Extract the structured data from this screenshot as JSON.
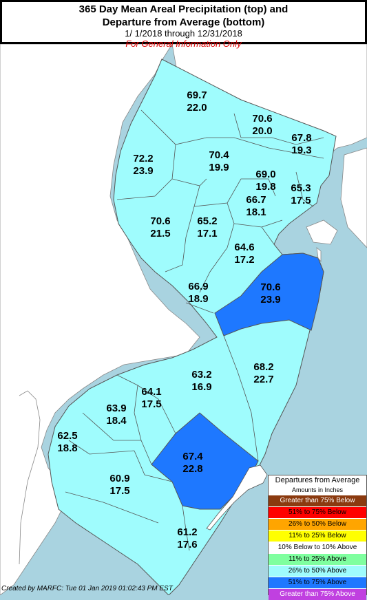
{
  "title": {
    "line1": "365 Day Mean Areal Precipitation (top) and",
    "line2": "Departure from Average (bottom)",
    "dates": "1/ 1/2018 through 12/31/2018",
    "disclaimer": "For General Information Only"
  },
  "regions": [
    {
      "top": "69.7",
      "bottom": "22.0",
      "category": "26% to 50% Above"
    },
    {
      "top": "70.6",
      "bottom": "20.0",
      "category": "26% to 50% Above"
    },
    {
      "top": "67.8",
      "bottom": "19.3",
      "category": "26% to 50% Above"
    },
    {
      "top": "72.2",
      "bottom": "23.9",
      "category": "26% to 50% Above"
    },
    {
      "top": "70.4",
      "bottom": "19.9",
      "category": "26% to 50% Above"
    },
    {
      "top": "69.0",
      "bottom": "19.8",
      "category": "26% to 50% Above"
    },
    {
      "top": "65.3",
      "bottom": "17.5",
      "category": "26% to 50% Above"
    },
    {
      "top": "66.7",
      "bottom": "18.1",
      "category": "26% to 50% Above"
    },
    {
      "top": "70.6",
      "bottom": "21.5",
      "category": "26% to 50% Above"
    },
    {
      "top": "65.2",
      "bottom": "17.1",
      "category": "26% to 50% Above"
    },
    {
      "top": "64.6",
      "bottom": "17.2",
      "category": "26% to 50% Above"
    },
    {
      "top": "70.6",
      "bottom": "23.9",
      "category": "51% to 75% Above"
    },
    {
      "top": "66.9",
      "bottom": "18.9",
      "category": "26% to 50% Above"
    },
    {
      "top": "68.2",
      "bottom": "22.7",
      "category": "26% to 50% Above"
    },
    {
      "top": "63.2",
      "bottom": "16.9",
      "category": "26% to 50% Above"
    },
    {
      "top": "64.1",
      "bottom": "17.5",
      "category": "26% to 50% Above"
    },
    {
      "top": "63.9",
      "bottom": "18.4",
      "category": "26% to 50% Above"
    },
    {
      "top": "62.5",
      "bottom": "18.8",
      "category": "26% to 50% Above"
    },
    {
      "top": "67.4",
      "bottom": "22.8",
      "category": "51% to 75% Above"
    },
    {
      "top": "60.9",
      "bottom": "17.5",
      "category": "26% to 50% Above"
    },
    {
      "top": "61.2",
      "bottom": "17.6",
      "category": "26% to 50% Above"
    }
  ],
  "legend": {
    "title": "Departures from Average",
    "subtitle": "Amounts in Inches",
    "items": [
      {
        "label": "Greater than 75% Below",
        "color": "#8b3a0f",
        "text_color": "#ffffff"
      },
      {
        "label": "51% to 75% Below",
        "color": "#ff0000",
        "text_color": "#000000"
      },
      {
        "label": "26% to 50% Below",
        "color": "#ffa500",
        "text_color": "#000000"
      },
      {
        "label": "11% to 25% Below",
        "color": "#ffff00",
        "text_color": "#000000"
      },
      {
        "label": "10% Below to 10% Above",
        "color": "#ffffff",
        "text_color": "#000000"
      },
      {
        "label": "11% to 25% Above",
        "color": "#7fff9f",
        "text_color": "#000000"
      },
      {
        "label": "26% to 50% Above",
        "color": "#9ffcfd",
        "text_color": "#000000"
      },
      {
        "label": "51% to 75% Above",
        "color": "#1e78ff",
        "text_color": "#000000"
      },
      {
        "label": "Greater than 75% Above",
        "color": "#c040e0",
        "text_color": "#ffffff"
      }
    ]
  },
  "footer": "Created by MARFC: Tue 01 Jan 2019 01:02:43 PM EST",
  "colors": {
    "water": "#a9d3e0",
    "land_other": "#ffffff",
    "above_26_50": "#9ffcfd",
    "above_51_75": "#1e78ff"
  }
}
